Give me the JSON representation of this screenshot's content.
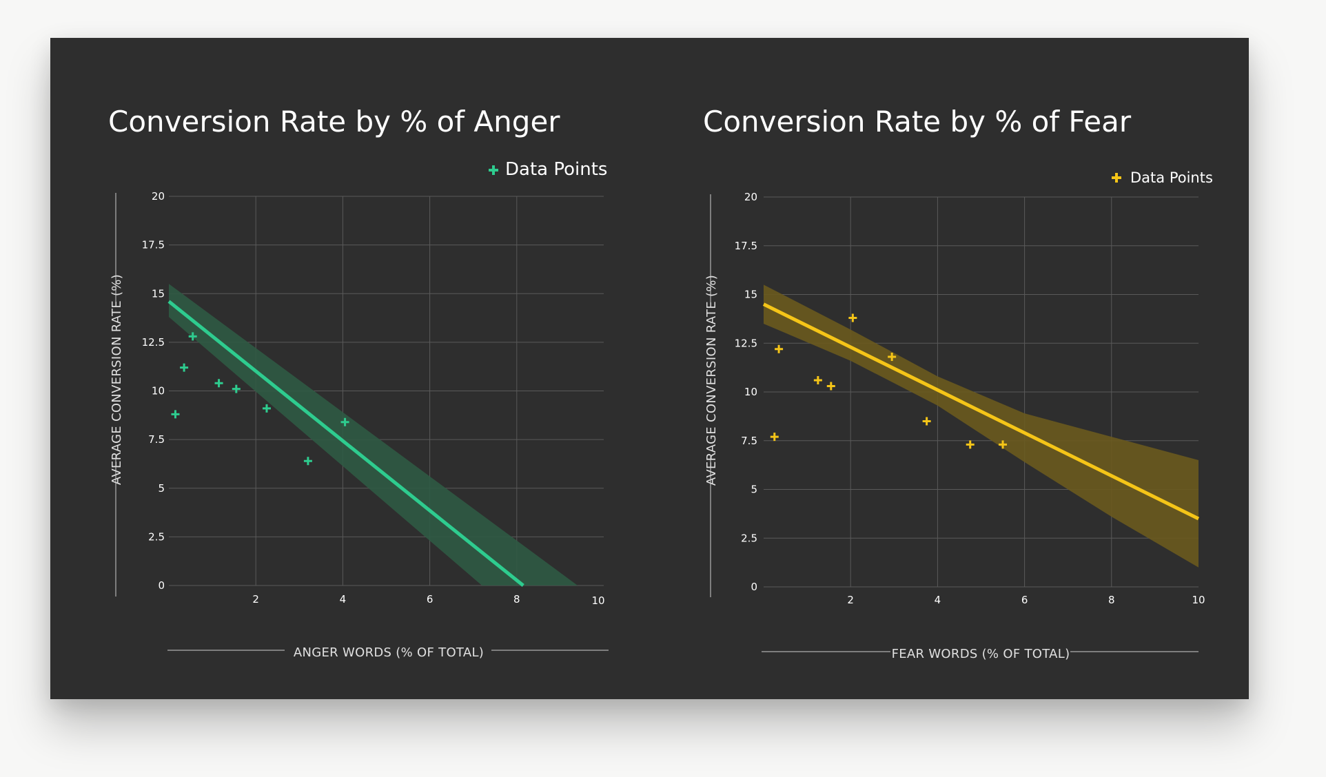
{
  "chart_data": [
    {
      "type": "scatter",
      "title": "Conversion Rate by % of Anger",
      "xlabel": "ANGER WORDS (% OF TOTAL)",
      "ylabel": "AVERAGE CONVERSION RATE (%)",
      "xlim": [
        0,
        10
      ],
      "ylim": [
        0,
        20
      ],
      "x_ticks": [
        "2",
        "4",
        "6",
        "8",
        "10"
      ],
      "y_ticks": [
        "0",
        "2.5",
        "5",
        "7.5",
        "10",
        "12.5",
        "15",
        "17.5",
        "20"
      ],
      "grid": true,
      "legend": {
        "position": "top-right",
        "label": "Data Points"
      },
      "color": "#2ecc8f",
      "band_color": "#2f5a44",
      "series": [
        {
          "name": "Data Points",
          "points": [
            [
              0.15,
              8.8
            ],
            [
              0.35,
              11.2
            ],
            [
              0.55,
              12.8
            ],
            [
              1.15,
              10.4
            ],
            [
              1.55,
              10.1
            ],
            [
              2.25,
              9.1
            ],
            [
              3.2,
              6.4
            ],
            [
              4.05,
              8.4
            ]
          ]
        }
      ],
      "trend": {
        "line": [
          [
            0,
            14.6
          ],
          [
            8.15,
            0
          ]
        ],
        "band_upper": [
          [
            0,
            15.5
          ],
          [
            9.4,
            0
          ]
        ],
        "band_lower": [
          [
            0,
            13.8
          ],
          [
            7.2,
            0
          ]
        ]
      }
    },
    {
      "type": "scatter",
      "title": "Conversion Rate by % of Fear",
      "xlabel": "FEAR WORDS (% OF TOTAL)",
      "ylabel": "AVERAGE CONVERSION RATE (%)",
      "xlim": [
        0,
        10
      ],
      "ylim": [
        0,
        20
      ],
      "x_ticks": [
        "2",
        "4",
        "6",
        "8",
        "10"
      ],
      "y_ticks": [
        "0",
        "2.5",
        "5",
        "7.5",
        "10",
        "12.5",
        "15",
        "17.5",
        "20"
      ],
      "grid": true,
      "legend": {
        "position": "top-right",
        "label": "Data Points"
      },
      "color": "#f5c518",
      "band_color": "#6a5a1e",
      "series": [
        {
          "name": "Data Points",
          "points": [
            [
              0.25,
              7.7
            ],
            [
              0.35,
              12.2
            ],
            [
              1.25,
              10.6
            ],
            [
              1.55,
              10.3
            ],
            [
              2.05,
              13.8
            ],
            [
              2.95,
              11.8
            ],
            [
              3.75,
              8.5
            ],
            [
              4.75,
              7.3
            ],
            [
              5.5,
              7.3
            ]
          ]
        }
      ],
      "trend": {
        "line": [
          [
            0,
            14.5
          ],
          [
            10,
            3.5
          ]
        ],
        "band_upper": [
          [
            0,
            15.5
          ],
          [
            2,
            13.2
          ],
          [
            4,
            10.8
          ],
          [
            6,
            8.9
          ],
          [
            8,
            7.7
          ],
          [
            10,
            6.5
          ]
        ],
        "band_lower": [
          [
            10,
            1.0
          ],
          [
            8,
            3.6
          ],
          [
            6,
            6.4
          ],
          [
            4,
            9.3
          ],
          [
            2,
            11.6
          ],
          [
            0,
            13.5
          ]
        ]
      }
    }
  ]
}
